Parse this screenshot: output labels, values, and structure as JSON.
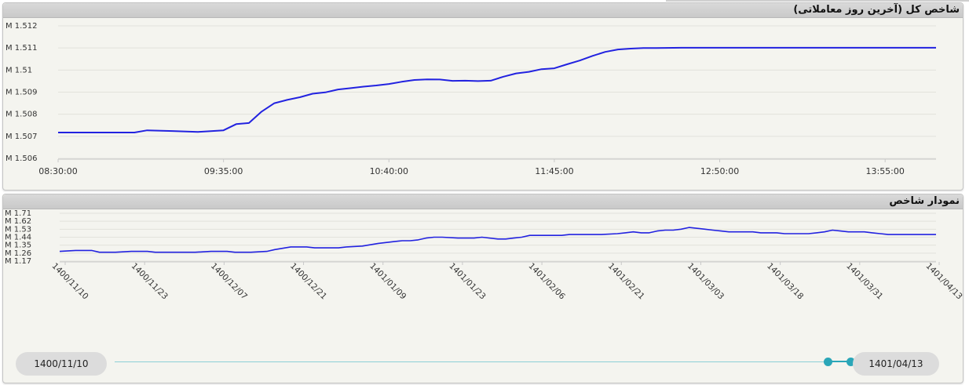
{
  "chart_data": [
    {
      "type": "line",
      "title": "شاخص کل (آخرین روز معاملاتی)",
      "xlabel": "",
      "ylabel": "",
      "x_ticks": [
        "08:30:00",
        "09:35:00",
        "10:40:00",
        "11:45:00",
        "12:50:00",
        "13:55:00"
      ],
      "y_ticks": [
        "M 1.506",
        "M 1.507",
        "M 1.508",
        "M 1.509",
        "M 1.51",
        "M 1.511",
        "M 1.512"
      ],
      "ylim": [
        1.506,
        1.512
      ],
      "xlim": [
        "08:30",
        "14:15"
      ],
      "grid": true,
      "series": [
        {
          "color": "#2222e0",
          "x": [
            "08:30",
            "08:45",
            "09:00",
            "09:05",
            "09:15",
            "09:25",
            "09:35",
            "09:40",
            "09:45",
            "09:50",
            "09:55",
            "10:00",
            "10:05",
            "10:10",
            "10:15",
            "10:20",
            "10:25",
            "10:30",
            "10:35",
            "10:40",
            "10:45",
            "10:50",
            "10:55",
            "11:00",
            "11:05",
            "11:10",
            "11:15",
            "11:20",
            "11:25",
            "11:30",
            "11:35",
            "11:40",
            "11:45",
            "11:50",
            "11:55",
            "12:00",
            "12:05",
            "12:10",
            "12:15",
            "12:20",
            "12:25",
            "12:35",
            "12:50",
            "13:00",
            "13:30",
            "14:00",
            "14:15"
          ],
          "y": [
            1.50717,
            1.50717,
            1.50717,
            1.50727,
            1.50724,
            1.5072,
            1.50727,
            1.50755,
            1.5076,
            1.50812,
            1.5085,
            1.50865,
            1.50877,
            1.50893,
            1.50899,
            1.50912,
            1.50918,
            1.50925,
            1.5093,
            1.50937,
            1.50947,
            1.50955,
            1.50958,
            1.50957,
            1.50951,
            1.50952,
            1.5095,
            1.50952,
            1.5097,
            1.50985,
            1.50992,
            1.51004,
            1.51008,
            1.51026,
            1.51043,
            1.51064,
            1.51082,
            1.51093,
            1.51097,
            1.511,
            1.511,
            1.51101,
            1.51101,
            1.51101,
            1.51101,
            1.51101,
            1.51101
          ]
        }
      ]
    },
    {
      "type": "line",
      "title": "نمودار شاخص",
      "xlabel": "",
      "ylabel": "",
      "x_ticks": [
        "1400/11/10",
        "1400/11/23",
        "1400/12/07",
        "1400/12/21",
        "1401/01/09",
        "1401/01/23",
        "1401/02/06",
        "1401/02/21",
        "1401/03/03",
        "1401/03/18",
        "1401/03/31",
        "1401/04/13"
      ],
      "y_ticks": [
        "M 1.17",
        "M 1.26",
        "M 1.35",
        "M 1.44",
        "M 1.53",
        "M 1.62",
        "M 1.71"
      ],
      "ylim": [
        1.17,
        1.71
      ],
      "xlim": [
        0,
        110
      ],
      "grid": true,
      "series": [
        {
          "color": "#2222e0",
          "x": [
            0,
            2,
            4,
            5,
            6,
            7,
            9,
            11,
            12,
            14,
            16,
            17,
            19,
            21,
            22,
            24,
            26,
            27,
            29,
            31,
            32,
            33,
            35,
            36,
            38,
            40,
            42,
            43,
            44,
            45,
            46,
            47,
            48,
            50,
            51,
            52,
            53,
            55,
            56,
            57,
            58,
            59,
            60,
            62,
            63,
            64,
            65,
            67,
            68,
            70,
            71,
            72,
            73,
            74,
            75,
            76,
            77,
            78,
            79,
            80,
            81,
            82,
            83,
            84,
            85,
            86,
            87,
            88,
            89,
            90,
            91,
            92,
            93,
            94,
            95,
            96,
            97,
            98,
            99,
            100,
            101,
            102,
            103,
            104,
            105,
            106,
            107,
            108,
            110
          ],
          "y": [
            1.28,
            1.29,
            1.29,
            1.27,
            1.27,
            1.27,
            1.28,
            1.28,
            1.27,
            1.27,
            1.27,
            1.27,
            1.28,
            1.28,
            1.27,
            1.27,
            1.28,
            1.3,
            1.33,
            1.33,
            1.32,
            1.32,
            1.32,
            1.33,
            1.34,
            1.37,
            1.39,
            1.4,
            1.4,
            1.41,
            1.43,
            1.44,
            1.44,
            1.43,
            1.43,
            1.43,
            1.44,
            1.42,
            1.42,
            1.43,
            1.44,
            1.46,
            1.46,
            1.46,
            1.46,
            1.47,
            1.47,
            1.47,
            1.47,
            1.48,
            1.49,
            1.5,
            1.49,
            1.49,
            1.51,
            1.52,
            1.52,
            1.53,
            1.55,
            1.54,
            1.53,
            1.52,
            1.51,
            1.5,
            1.5,
            1.5,
            1.5,
            1.49,
            1.49,
            1.49,
            1.48,
            1.48,
            1.48,
            1.48,
            1.49,
            1.5,
            1.52,
            1.51,
            1.5,
            1.5,
            1.5,
            1.49,
            1.48,
            1.47,
            1.47,
            1.47,
            1.47,
            1.47,
            1.47
          ]
        }
      ]
    }
  ],
  "range_selector": {
    "start": "1400/11/10",
    "end": "1401/04/13",
    "handle_left_fraction": 0.965,
    "handle_right_fraction": 0.995
  }
}
